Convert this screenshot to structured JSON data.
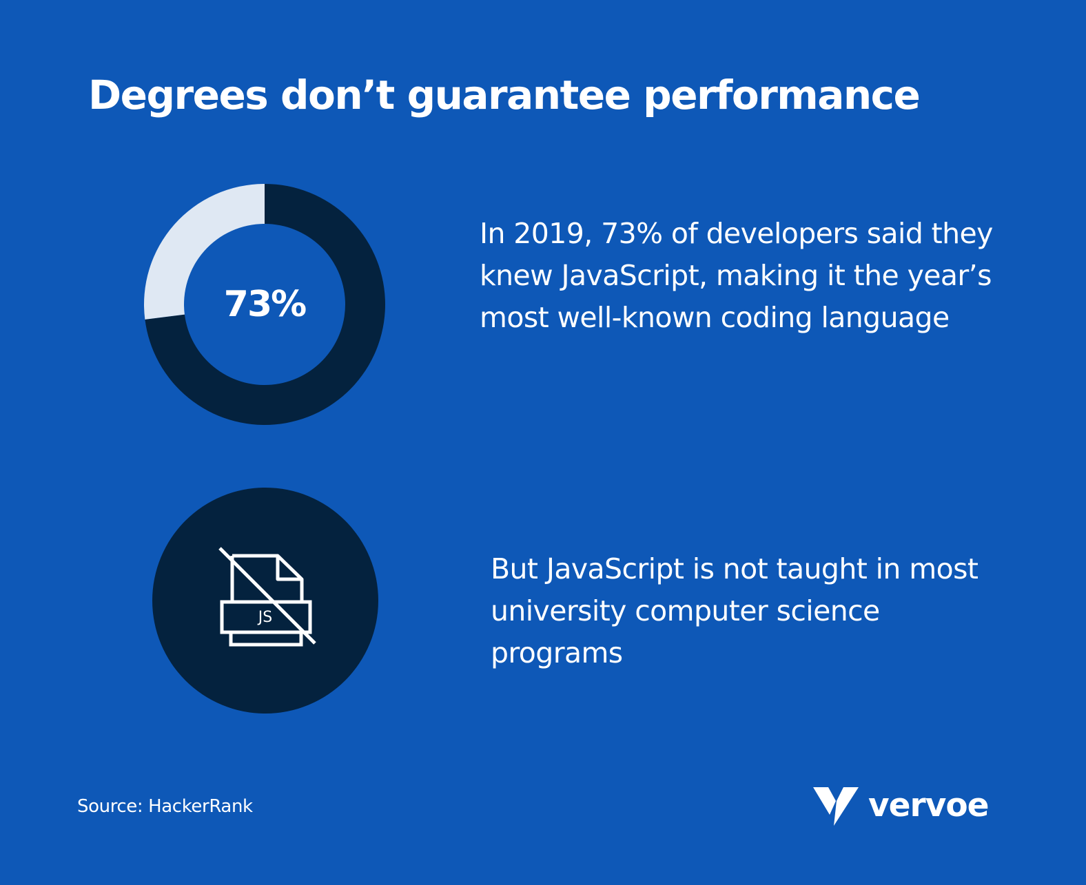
{
  "title": "Degrees don’t guarantee performance",
  "chart_data": {
    "type": "pie",
    "variant": "donut",
    "center_label": "73%",
    "slices": [
      {
        "value": 73,
        "color": "#04223e"
      },
      {
        "value": 27,
        "color": "#dfe8f3"
      }
    ]
  },
  "stats": [
    {
      "text": "In 2019, 73% of developers said they knew JavaScript, making it the year’s most well-known coding language"
    },
    {
      "text": "But JavaScript is not taught in most university computer science programs"
    }
  ],
  "icon": {
    "name": "no-javascript-file-icon",
    "label": "JS"
  },
  "source": "Source: HackerRank",
  "logo": {
    "text": "vervoe"
  },
  "colors": {
    "background": "#0e58b7",
    "dark": "#04223e",
    "light": "#dfe8f3",
    "text": "#ffffff"
  }
}
